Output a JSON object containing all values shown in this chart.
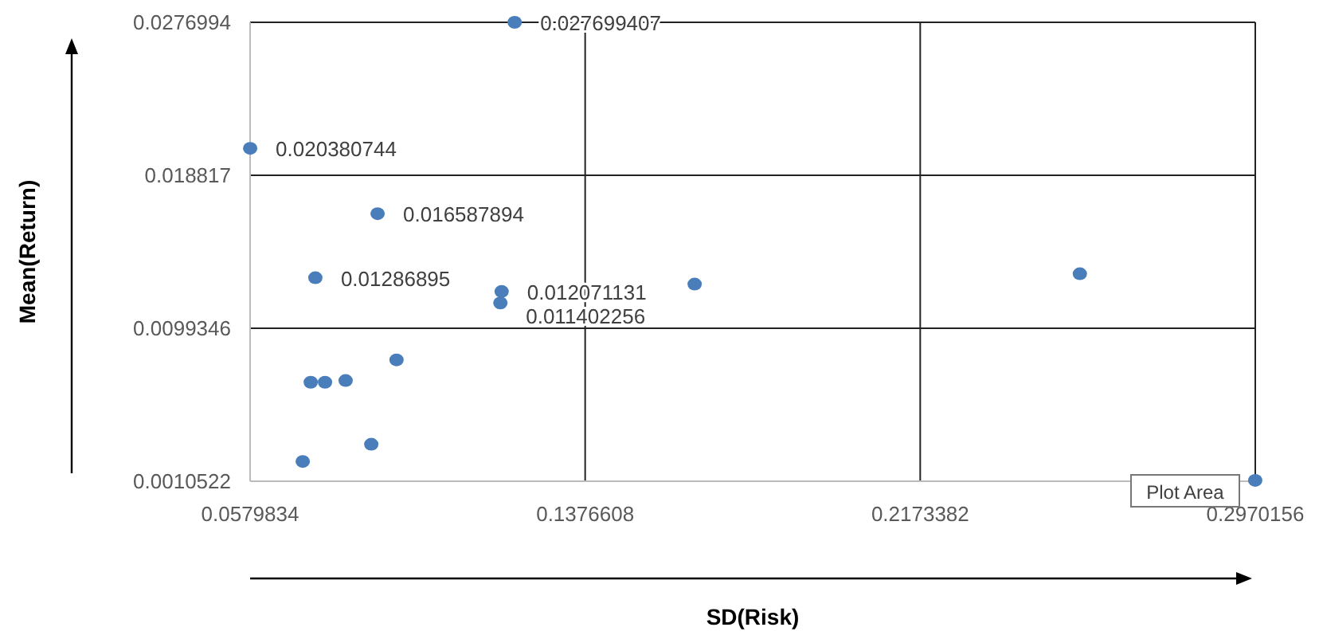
{
  "chart_data": {
    "type": "scatter",
    "xlabel": "SD(Risk)",
    "ylabel": "Mean(Return)",
    "xlim": [
      0.0579834,
      0.2970156
    ],
    "xticks": [
      0.0579834,
      0.1376608,
      0.2173382,
      0.2970156
    ],
    "ylim": [
      0.0010522,
      0.0277
    ],
    "yticks": [
      0.0010522,
      0.0099346,
      0.018817,
      0.0276994
    ],
    "grid": true,
    "marker": "circle",
    "annotations": [
      "Plot Area"
    ],
    "series": [
      {
        "color": "#4a7ebb",
        "x": [
          0.1209,
          0.058,
          0.0883,
          0.0735,
          0.1178,
          0.1175,
          0.1637,
          0.2553,
          0.0928,
          0.0724,
          0.0758,
          0.0807,
          0.0868,
          0.0705,
          0.297
        ],
        "values": [
          0.027699407,
          0.020380744,
          0.016587894,
          0.01286895,
          0.012071131,
          0.011402256,
          0.0125,
          0.0131,
          0.0081,
          0.0068,
          0.0068,
          0.0069,
          0.0032,
          0.0022,
          0.0011
        ],
        "value_labels": [
          "0.027699407",
          "0.020380744",
          "0.016587894",
          "0.01286895",
          "0.012071131",
          "0.011402256",
          null,
          null,
          null,
          null,
          null,
          null,
          null,
          null,
          null
        ]
      }
    ]
  }
}
